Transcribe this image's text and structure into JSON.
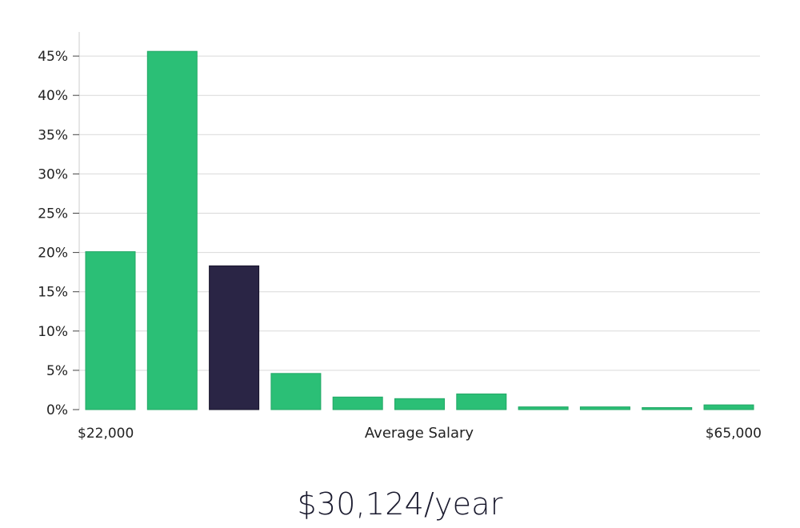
{
  "headline": "$30,124/year",
  "colors": {
    "bar": "#2bbf76",
    "highlight": "#2a2545",
    "grid": "#d9d9d9"
  },
  "chart_data": {
    "type": "bar",
    "title": "",
    "xlabel": "Average Salary",
    "ylabel": "",
    "x_min_label": "$22,000",
    "x_max_label": "$65,000",
    "ylim": [
      0,
      48
    ],
    "yticks": [
      0,
      5,
      10,
      15,
      20,
      25,
      30,
      35,
      40,
      45
    ],
    "ytick_labels": [
      "0%",
      "5%",
      "10%",
      "15%",
      "20%",
      "25%",
      "30%",
      "35%",
      "40%",
      "45%"
    ],
    "values": [
      20.1,
      45.6,
      18.3,
      4.6,
      1.6,
      1.4,
      2.0,
      0.35,
      0.35,
      0.25,
      0.6
    ],
    "highlight_index": 2,
    "grid": true,
    "legend": "none"
  }
}
